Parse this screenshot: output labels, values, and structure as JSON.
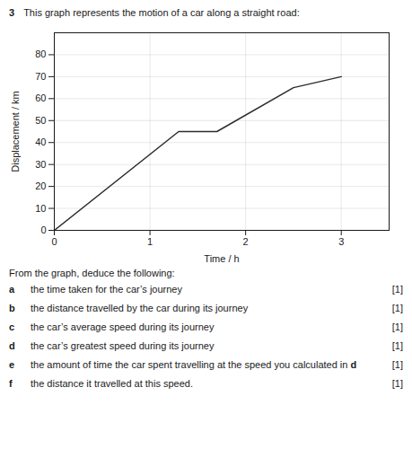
{
  "chart_data": {
    "type": "line",
    "question_number": "3",
    "title": "This graph represents the motion of a car along a straight road:",
    "xlabel": "Time / h",
    "ylabel": "Displacement / km",
    "x": [
      0,
      1.3,
      1.7,
      2.5,
      3.0
    ],
    "values": [
      0,
      45,
      45,
      65,
      70
    ],
    "color": "#2c2c2c",
    "xlim": [
      0,
      3.5
    ],
    "ylim": [
      0,
      90
    ],
    "xticks": [
      0,
      1,
      2,
      3
    ],
    "yticks": [
      0,
      10,
      20,
      30,
      40,
      50,
      60,
      70,
      80
    ],
    "grid": true,
    "annotations": {
      "intro": "From the graph, deduce the following:",
      "questions": [
        {
          "letter": "a",
          "text": "the time taken for the car’s journey",
          "mark": "[1]"
        },
        {
          "letter": "b",
          "text": "the distance travelled by the car during its journey",
          "mark": "[1]"
        },
        {
          "letter": "c",
          "text": "the car’s average speed during its journey",
          "mark": "[1]"
        },
        {
          "letter": "d",
          "text": "the car’s greatest speed during its journey",
          "mark": "[1]"
        },
        {
          "letter": "e",
          "text": "the amount of time the car spent travelling at the speed you calculated in ",
          "bold_text": "d",
          "mark": "[1]"
        },
        {
          "letter": "f",
          "text": "the distance it travelled at this speed.",
          "mark": "[1]"
        }
      ]
    }
  }
}
